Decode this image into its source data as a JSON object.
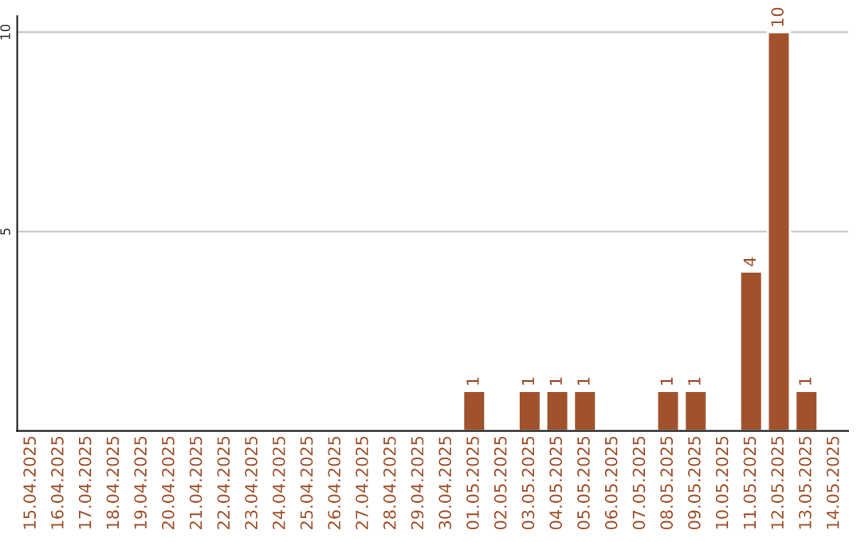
{
  "chart_data": {
    "type": "bar",
    "categories": [
      "15.04.2025",
      "16.04.2025",
      "17.04.2025",
      "18.04.2025",
      "19.04.2025",
      "20.04.2025",
      "21.04.2025",
      "22.04.2025",
      "23.04.2025",
      "24.04.2025",
      "25.04.2025",
      "26.04.2025",
      "27.04.2025",
      "28.04.2025",
      "29.04.2025",
      "30.04.2025",
      "01.05.2025",
      "02.05.2025",
      "03.05.2025",
      "04.05.2025",
      "05.05.2025",
      "06.05.2025",
      "07.05.2025",
      "08.05.2025",
      "09.05.2025",
      "10.05.2025",
      "11.05.2025",
      "12.05.2025",
      "13.05.2025",
      "14.05.2025"
    ],
    "values": [
      null,
      null,
      null,
      null,
      null,
      null,
      null,
      null,
      null,
      null,
      null,
      null,
      null,
      null,
      null,
      null,
      1,
      null,
      1,
      1,
      1,
      null,
      null,
      1,
      1,
      null,
      4,
      10,
      1,
      null
    ],
    "value_labels": [
      null,
      null,
      null,
      null,
      null,
      null,
      null,
      null,
      null,
      null,
      null,
      null,
      null,
      null,
      null,
      null,
      "1",
      null,
      "1",
      "1",
      "1",
      null,
      null,
      "1",
      "1",
      null,
      "4",
      "10",
      "1",
      null
    ],
    "color": "#a0522d",
    "ylim": [
      0,
      10.4
    ],
    "yticks": [
      5,
      10
    ],
    "grid": "y"
  }
}
